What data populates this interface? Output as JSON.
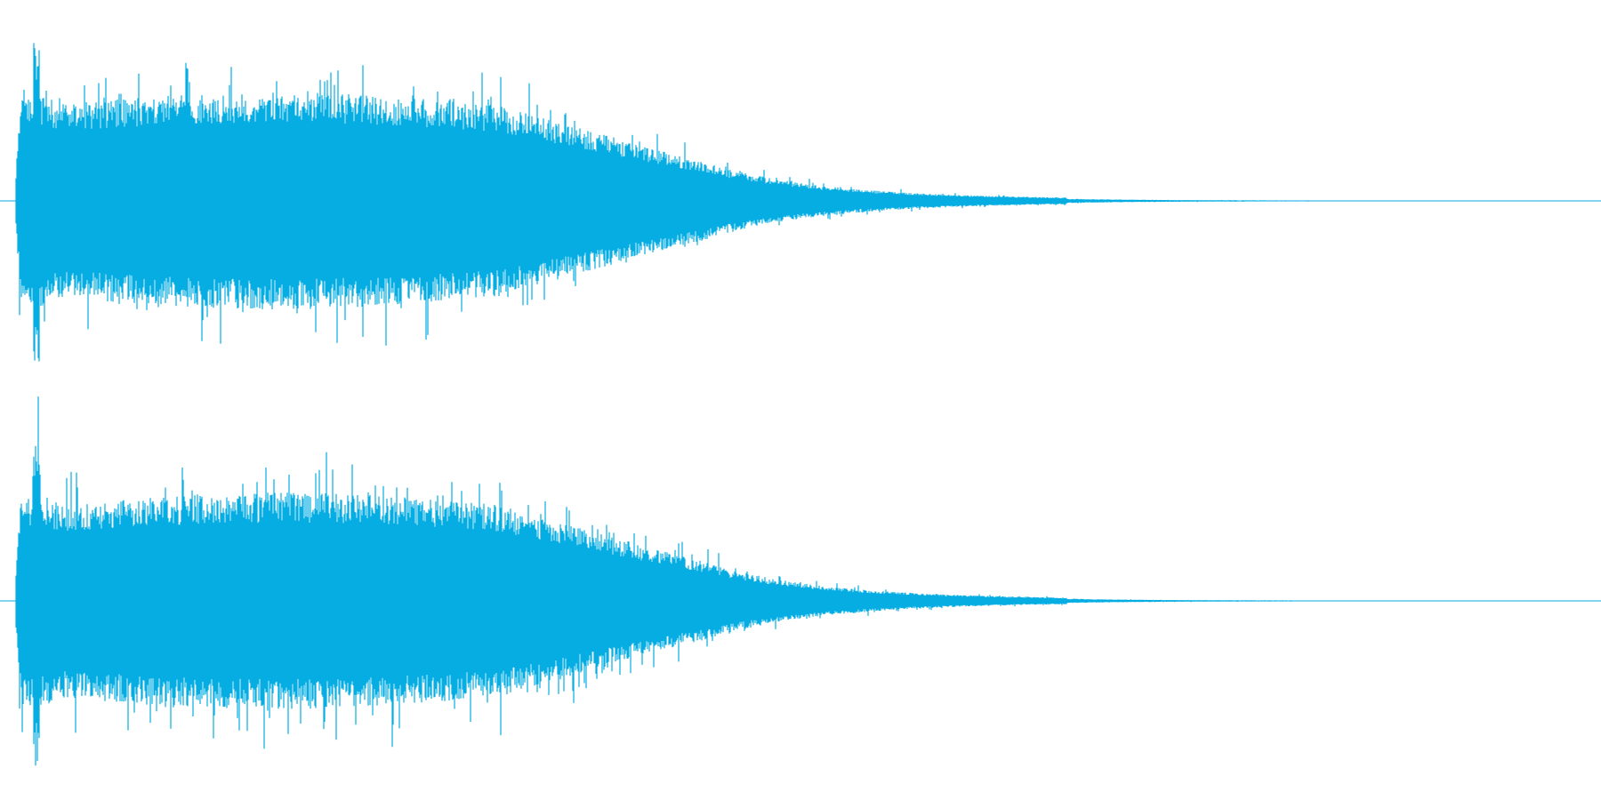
{
  "waveform": {
    "color": "#05ADE3",
    "background": "#FFFFFF",
    "channel_count": 2,
    "channels": [
      {
        "label": ""
      },
      {
        "label": ""
      }
    ]
  }
}
